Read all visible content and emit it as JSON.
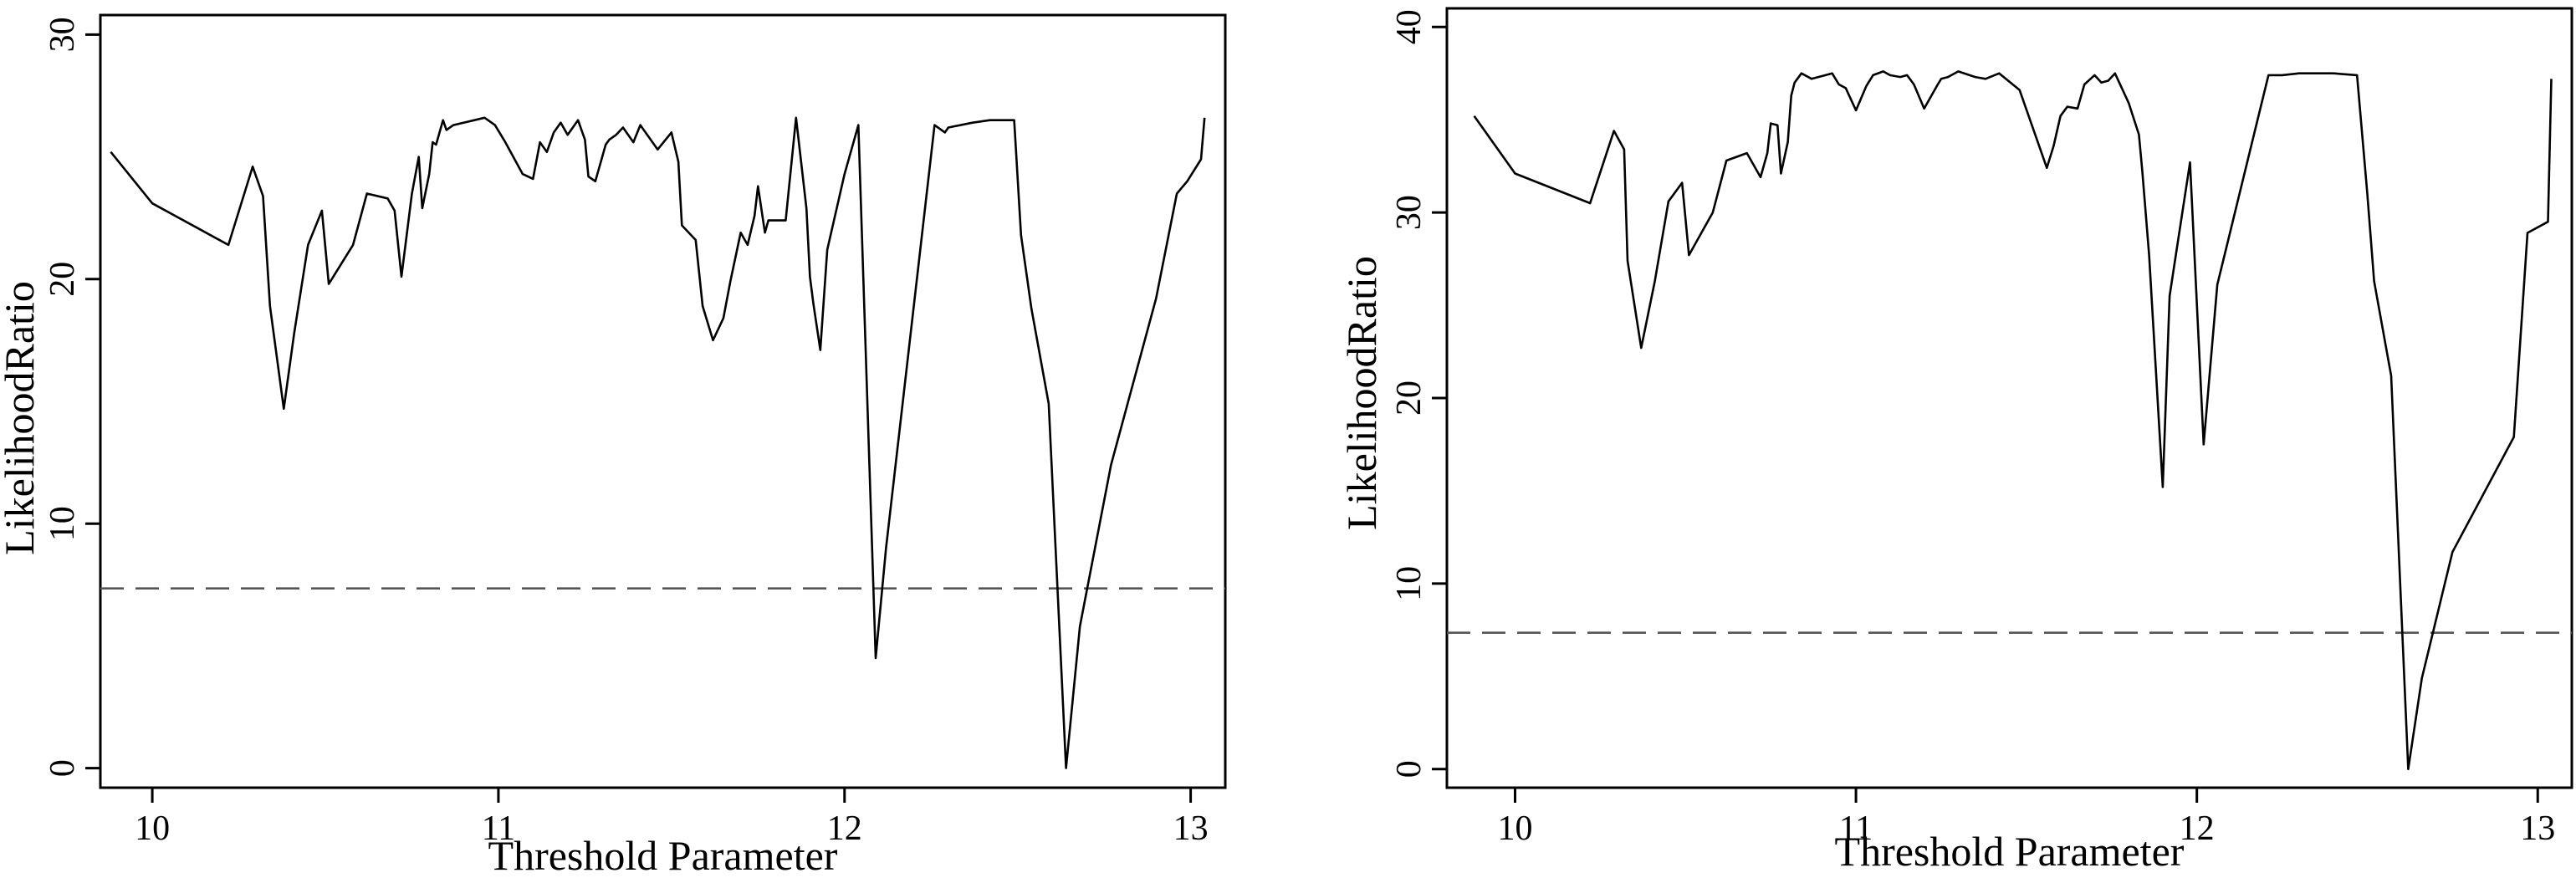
{
  "chart_data": [
    {
      "type": "line",
      "title": "",
      "xlabel": "Threshold Parameter",
      "ylabel": "LikelihoodRatio",
      "xlim": [
        9.85,
        13.1
      ],
      "ylim": [
        -0.8,
        30.8
      ],
      "x_ticks": [
        10,
        11,
        12,
        13
      ],
      "y_ticks": [
        0,
        10,
        20,
        30
      ],
      "grid": false,
      "reference_line": {
        "y": 7.35,
        "style": "dashed"
      },
      "series": [
        {
          "x": [
            9.88,
            10.0,
            10.22,
            10.29,
            10.32,
            10.34,
            10.38,
            10.41,
            10.45,
            10.49,
            10.51,
            10.58,
            10.62,
            10.68,
            10.7,
            10.72,
            10.75,
            10.77,
            10.78,
            10.8,
            10.81,
            10.82,
            10.84,
            10.85,
            10.87,
            10.96,
            10.99,
            11.02,
            11.07,
            11.1,
            11.12,
            11.14,
            11.16,
            11.18,
            11.2,
            11.23,
            11.25,
            11.26,
            11.28,
            11.31,
            11.32,
            11.34,
            11.36,
            11.39,
            11.41,
            11.46,
            11.5,
            11.52,
            11.53,
            11.57,
            11.59,
            11.62,
            11.65,
            11.67,
            11.7,
            11.72,
            11.74,
            11.75,
            11.77,
            11.78,
            11.83,
            11.86,
            11.89,
            11.9,
            11.91,
            11.93,
            11.95,
            12.0,
            12.04,
            12.09,
            12.12,
            12.26,
            12.29,
            12.3,
            12.37,
            12.42,
            12.49,
            12.51,
            12.54,
            12.59,
            12.64,
            12.68,
            12.77,
            12.9,
            12.96,
            12.99,
            13.03,
            13.04
          ],
          "y": [
            25.2,
            23.1,
            21.4,
            24.6,
            23.4,
            18.9,
            14.7,
            17.8,
            21.4,
            22.8,
            19.8,
            21.4,
            23.5,
            23.3,
            22.8,
            20.1,
            23.5,
            25.0,
            22.9,
            24.3,
            25.6,
            25.5,
            26.5,
            26.1,
            26.3,
            26.6,
            26.3,
            25.6,
            24.3,
            24.1,
            25.6,
            25.2,
            26.0,
            26.4,
            25.9,
            26.5,
            25.7,
            24.2,
            24.0,
            25.5,
            25.7,
            25.9,
            26.2,
            25.6,
            26.3,
            25.3,
            26.0,
            24.8,
            22.2,
            21.6,
            18.9,
            17.5,
            18.4,
            19.9,
            21.9,
            21.4,
            22.6,
            23.8,
            21.9,
            22.4,
            22.4,
            26.6,
            22.9,
            20.1,
            19.0,
            17.1,
            21.2,
            24.3,
            26.3,
            4.5,
            9.0,
            26.3,
            26.0,
            26.2,
            26.4,
            26.5,
            26.5,
            21.8,
            18.8,
            14.9,
            0.0,
            5.8,
            12.4,
            19.2,
            23.5,
            24.0,
            24.9,
            26.6
          ]
        }
      ]
    },
    {
      "type": "line",
      "title": "",
      "xlabel": "Threshold Parameter",
      "ylabel": "LikelihoodRatio",
      "xlim": [
        9.8,
        13.1
      ],
      "ylim": [
        -1.0,
        41.0
      ],
      "x_ticks": [
        10,
        11,
        12,
        13
      ],
      "y_ticks": [
        0,
        10,
        20,
        30,
        40
      ],
      "grid": false,
      "reference_line": {
        "y": 7.35,
        "style": "dashed"
      },
      "series": [
        {
          "x": [
            9.88,
            10.0,
            10.22,
            10.29,
            10.32,
            10.33,
            10.37,
            10.41,
            10.45,
            10.49,
            10.51,
            10.58,
            10.62,
            10.68,
            10.72,
            10.74,
            10.75,
            10.77,
            10.78,
            10.8,
            10.81,
            10.82,
            10.84,
            10.87,
            10.93,
            10.95,
            10.97,
            11.0,
            11.03,
            11.05,
            11.08,
            11.1,
            11.13,
            11.15,
            11.17,
            11.2,
            11.24,
            11.25,
            11.27,
            11.3,
            11.35,
            11.38,
            11.42,
            11.46,
            11.48,
            11.52,
            11.56,
            11.58,
            11.6,
            11.62,
            11.65,
            11.67,
            11.7,
            11.72,
            11.74,
            11.76,
            11.8,
            11.83,
            11.84,
            11.86,
            11.9,
            11.92,
            11.94,
            11.98,
            12.02,
            12.06,
            12.21,
            12.25,
            12.3,
            12.35,
            12.4,
            12.47,
            12.5,
            12.52,
            12.57,
            12.62,
            12.66,
            12.75,
            12.93,
            12.97,
            13.03,
            13.04
          ],
          "y": [
            35.2,
            32.1,
            30.5,
            34.4,
            33.4,
            27.4,
            22.7,
            26.3,
            30.6,
            31.6,
            27.7,
            30.0,
            32.8,
            33.2,
            31.9,
            33.2,
            34.8,
            34.7,
            32.1,
            33.8,
            36.3,
            37.0,
            37.5,
            37.2,
            37.5,
            36.9,
            36.7,
            35.5,
            36.8,
            37.4,
            37.6,
            37.4,
            37.3,
            37.4,
            36.9,
            35.6,
            36.9,
            37.2,
            37.3,
            37.6,
            37.3,
            37.2,
            37.5,
            36.9,
            36.6,
            34.5,
            32.4,
            33.6,
            35.2,
            35.7,
            35.6,
            36.9,
            37.4,
            37.0,
            37.1,
            37.5,
            35.9,
            34.2,
            32.2,
            27.7,
            15.2,
            25.5,
            27.9,
            32.7,
            17.5,
            26.1,
            37.4,
            37.4,
            37.5,
            37.5,
            37.5,
            37.4,
            31.0,
            26.3,
            21.2,
            0.0,
            4.9,
            11.7,
            17.9,
            28.9,
            29.5,
            37.2
          ]
        }
      ]
    }
  ]
}
